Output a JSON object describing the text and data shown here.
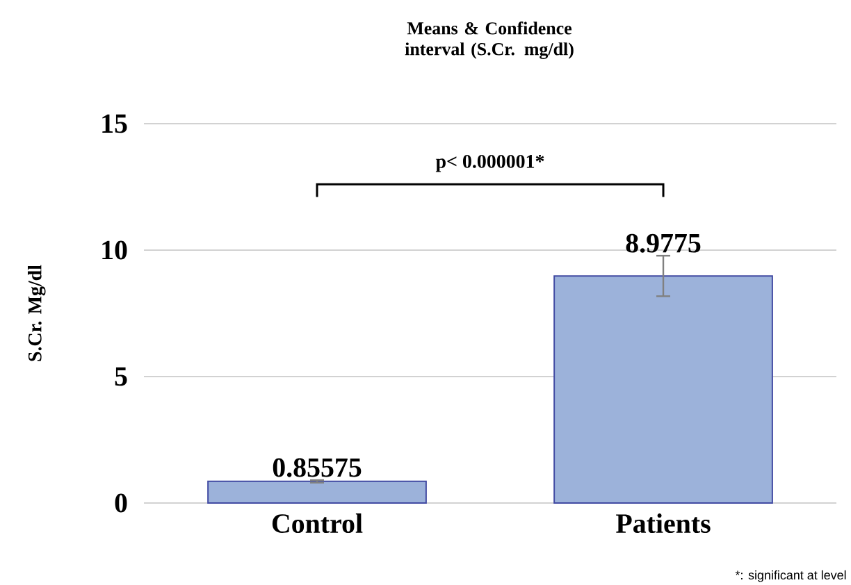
{
  "chart_data": {
    "type": "bar",
    "title": "Means & Confidence interval (S.Cr. mg/dl)",
    "ylabel": "S.Cr. Mg/dl",
    "categories": [
      "Control",
      "Patients"
    ],
    "values": [
      0.85575,
      8.9775
    ],
    "errors": [
      0.05,
      0.8
    ],
    "color": "#9cb2da",
    "data_labels": true,
    "ylim": [
      0,
      15
    ],
    "yticks": [
      0,
      5,
      10,
      15
    ],
    "grid": "y",
    "annotations": [
      "p< 0.000001*",
      "*: significant at level"
    ]
  }
}
